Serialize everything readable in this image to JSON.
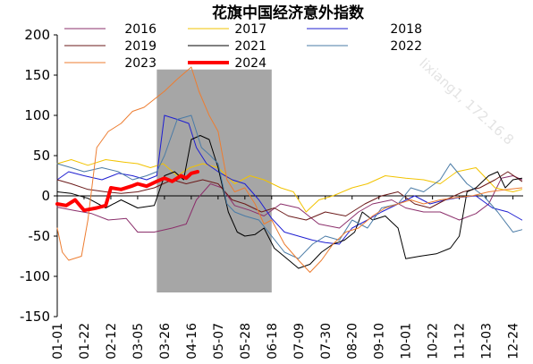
{
  "chart_data": {
    "type": "line",
    "title": "花旗中国经济意外指数",
    "xlabel": "",
    "ylabel": "",
    "x_ticks": [
      "01-01",
      "01-22",
      "02-12",
      "03-05",
      "03-26",
      "04-16",
      "05-07",
      "05-28",
      "06-18",
      "07-09",
      "07-30",
      "08-20",
      "09-10",
      "10-01",
      "10-22",
      "11-12",
      "12-03",
      "12-24"
    ],
    "x_range": [
      "01-01",
      "12-31"
    ],
    "ylim": [
      -150,
      200
    ],
    "y_ticks": [
      200,
      150,
      100,
      50,
      0,
      -50,
      -100,
      -150
    ],
    "grid": false,
    "zero_line": true,
    "legend_position": "top",
    "shaded_region": {
      "start": "03-20",
      "end": "06-18",
      "ylow": -120,
      "yhigh": 157,
      "color": "#a6a6a6"
    },
    "watermark": "lixiang1, 172.16.8",
    "series": [
      {
        "name": "2016",
        "color": "#8b2f6b",
        "width": 1,
        "points": [
          [
            "01-01",
            -14
          ],
          [
            "01-14",
            -18
          ],
          [
            "01-28",
            -22
          ],
          [
            "02-10",
            -30
          ],
          [
            "02-24",
            -28
          ],
          [
            "03-05",
            -45
          ],
          [
            "03-18",
            -45
          ],
          [
            "04-01",
            -40
          ],
          [
            "04-12",
            -35
          ],
          [
            "04-20",
            -5
          ],
          [
            "05-01",
            15
          ],
          [
            "05-10",
            10
          ],
          [
            "05-20",
            -12
          ],
          [
            "06-01",
            -18
          ],
          [
            "06-12",
            -25
          ],
          [
            "06-25",
            -10
          ],
          [
            "07-09",
            -15
          ],
          [
            "07-25",
            -35
          ],
          [
            "08-10",
            -40
          ],
          [
            "08-25",
            -20
          ],
          [
            "09-05",
            -10
          ],
          [
            "09-20",
            -5
          ],
          [
            "10-01",
            -15
          ],
          [
            "10-15",
            -20
          ],
          [
            "10-28",
            -20
          ],
          [
            "11-12",
            -30
          ],
          [
            "11-25",
            -22
          ],
          [
            "12-05",
            -10
          ],
          [
            "12-15",
            22
          ],
          [
            "12-24",
            25
          ],
          [
            "12-31",
            20
          ]
        ]
      },
      {
        "name": "2017",
        "color": "#f2c300",
        "width": 1,
        "points": [
          [
            "01-01",
            40
          ],
          [
            "01-12",
            45
          ],
          [
            "01-25",
            38
          ],
          [
            "02-08",
            45
          ],
          [
            "02-22",
            42
          ],
          [
            "03-05",
            40
          ],
          [
            "03-15",
            35
          ],
          [
            "03-25",
            40
          ],
          [
            "04-05",
            25
          ],
          [
            "04-15",
            35
          ],
          [
            "04-25",
            40
          ],
          [
            "05-07",
            35
          ],
          [
            "05-20",
            15
          ],
          [
            "06-01",
            25
          ],
          [
            "06-12",
            20
          ],
          [
            "06-25",
            10
          ],
          [
            "07-05",
            5
          ],
          [
            "07-15",
            -20
          ],
          [
            "07-25",
            -5
          ],
          [
            "08-05",
            0
          ],
          [
            "08-20",
            10
          ],
          [
            "09-01",
            15
          ],
          [
            "09-15",
            25
          ],
          [
            "10-01",
            22
          ],
          [
            "10-15",
            20
          ],
          [
            "10-28",
            15
          ],
          [
            "11-10",
            30
          ],
          [
            "11-25",
            35
          ],
          [
            "12-10",
            10
          ],
          [
            "12-24",
            5
          ],
          [
            "12-31",
            8
          ]
        ]
      },
      {
        "name": "2018",
        "color": "#1f1fd1",
        "width": 1,
        "points": [
          [
            "01-01",
            20
          ],
          [
            "01-10",
            30
          ],
          [
            "01-22",
            25
          ],
          [
            "02-05",
            20
          ],
          [
            "02-18",
            28
          ],
          [
            "03-01",
            25
          ],
          [
            "03-12",
            20
          ],
          [
            "03-20",
            25
          ],
          [
            "03-26",
            100
          ],
          [
            "04-05",
            95
          ],
          [
            "04-14",
            90
          ],
          [
            "04-20",
            60
          ],
          [
            "04-28",
            40
          ],
          [
            "05-07",
            30
          ],
          [
            "05-18",
            20
          ],
          [
            "05-28",
            15
          ],
          [
            "06-08",
            -5
          ],
          [
            "06-18",
            -28
          ],
          [
            "06-28",
            -45
          ],
          [
            "07-09",
            -50
          ],
          [
            "07-20",
            -55
          ],
          [
            "07-30",
            -58
          ],
          [
            "08-10",
            -60
          ],
          [
            "08-20",
            -40
          ],
          [
            "09-01",
            -30
          ],
          [
            "09-12",
            -20
          ],
          [
            "09-25",
            -10
          ],
          [
            "10-08",
            0
          ],
          [
            "10-20",
            -10
          ],
          [
            "11-01",
            -5
          ],
          [
            "11-12",
            -2
          ],
          [
            "11-25",
            0
          ],
          [
            "12-08",
            -15
          ],
          [
            "12-20",
            -20
          ],
          [
            "12-31",
            -30
          ]
        ]
      },
      {
        "name": "2019",
        "color": "#6b1a1a",
        "width": 1,
        "points": [
          [
            "01-01",
            20
          ],
          [
            "01-12",
            15
          ],
          [
            "01-25",
            8
          ],
          [
            "02-08",
            5
          ],
          [
            "02-20",
            3
          ],
          [
            "03-05",
            5
          ],
          [
            "03-18",
            10
          ],
          [
            "04-01",
            20
          ],
          [
            "04-12",
            15
          ],
          [
            "04-25",
            20
          ],
          [
            "05-07",
            15
          ],
          [
            "05-18",
            -5
          ],
          [
            "05-28",
            -10
          ],
          [
            "06-10",
            -20
          ],
          [
            "06-20",
            -15
          ],
          [
            "07-01",
            -25
          ],
          [
            "07-15",
            -30
          ],
          [
            "07-30",
            -20
          ],
          [
            "08-15",
            -25
          ],
          [
            "08-30",
            -10
          ],
          [
            "09-12",
            0
          ],
          [
            "09-25",
            5
          ],
          [
            "10-08",
            -10
          ],
          [
            "10-20",
            -15
          ],
          [
            "11-01",
            -5
          ],
          [
            "11-15",
            5
          ],
          [
            "11-28",
            10
          ],
          [
            "12-10",
            20
          ],
          [
            "12-20",
            30
          ],
          [
            "12-31",
            18
          ]
        ]
      },
      {
        "name": "2021",
        "color": "#000000",
        "width": 1,
        "points": [
          [
            "01-01",
            5
          ],
          [
            "01-12",
            3
          ],
          [
            "01-25",
            -3
          ],
          [
            "02-08",
            -15
          ],
          [
            "02-20",
            -5
          ],
          [
            "03-05",
            -15
          ],
          [
            "03-18",
            -12
          ],
          [
            "03-26",
            25
          ],
          [
            "04-03",
            30
          ],
          [
            "04-10",
            20
          ],
          [
            "04-16",
            70
          ],
          [
            "04-23",
            75
          ],
          [
            "04-30",
            70
          ],
          [
            "05-07",
            35
          ],
          [
            "05-15",
            -20
          ],
          [
            "05-22",
            -45
          ],
          [
            "05-28",
            -50
          ],
          [
            "06-05",
            -48
          ],
          [
            "06-12",
            -40
          ],
          [
            "06-20",
            -65
          ],
          [
            "06-30",
            -78
          ],
          [
            "07-09",
            -90
          ],
          [
            "07-18",
            -85
          ],
          [
            "07-27",
            -70
          ],
          [
            "08-05",
            -60
          ],
          [
            "08-14",
            -55
          ],
          [
            "08-22",
            -45
          ],
          [
            "08-28",
            -20
          ],
          [
            "09-05",
            -30
          ],
          [
            "09-15",
            -25
          ],
          [
            "09-25",
            -40
          ],
          [
            "10-01",
            -78
          ],
          [
            "10-12",
            -75
          ],
          [
            "10-25",
            -72
          ],
          [
            "11-05",
            -65
          ],
          [
            "11-12",
            -50
          ],
          [
            "11-18",
            5
          ],
          [
            "11-25",
            10
          ],
          [
            "12-05",
            25
          ],
          [
            "12-12",
            30
          ],
          [
            "12-18",
            10
          ],
          [
            "12-24",
            20
          ],
          [
            "12-31",
            22
          ]
        ]
      },
      {
        "name": "2022",
        "color": "#4a7ba6",
        "width": 1,
        "points": [
          [
            "01-01",
            40
          ],
          [
            "01-12",
            35
          ],
          [
            "01-22",
            30
          ],
          [
            "02-05",
            35
          ],
          [
            "02-18",
            30
          ],
          [
            "03-01",
            20
          ],
          [
            "03-12",
            25
          ],
          [
            "03-20",
            30
          ],
          [
            "03-26",
            50
          ],
          [
            "04-05",
            95
          ],
          [
            "04-16",
            100
          ],
          [
            "04-24",
            60
          ],
          [
            "05-01",
            50
          ],
          [
            "05-07",
            40
          ],
          [
            "05-14",
            -10
          ],
          [
            "05-20",
            -20
          ],
          [
            "05-28",
            -25
          ],
          [
            "06-08",
            -30
          ],
          [
            "06-18",
            -50
          ],
          [
            "06-28",
            -70
          ],
          [
            "07-09",
            -78
          ],
          [
            "07-20",
            -60
          ],
          [
            "07-30",
            -50
          ],
          [
            "08-10",
            -55
          ],
          [
            "08-20",
            -30
          ],
          [
            "09-01",
            -40
          ],
          [
            "09-12",
            -15
          ],
          [
            "09-25",
            -10
          ],
          [
            "10-05",
            10
          ],
          [
            "10-15",
            5
          ],
          [
            "10-28",
            20
          ],
          [
            "11-05",
            40
          ],
          [
            "11-18",
            15
          ],
          [
            "12-01",
            0
          ],
          [
            "12-12",
            -20
          ],
          [
            "12-24",
            -45
          ],
          [
            "12-31",
            -42
          ]
        ]
      },
      {
        "name": "2023",
        "color": "#ed7d31",
        "width": 1,
        "points": [
          [
            "01-01",
            -40
          ],
          [
            "01-05",
            -70
          ],
          [
            "01-10",
            -80
          ],
          [
            "01-20",
            -75
          ],
          [
            "01-25",
            -30
          ],
          [
            "02-01",
            60
          ],
          [
            "02-10",
            80
          ],
          [
            "02-20",
            90
          ],
          [
            "03-01",
            105
          ],
          [
            "03-10",
            110
          ],
          [
            "03-18",
            120
          ],
          [
            "03-26",
            130
          ],
          [
            "04-05",
            145
          ],
          [
            "04-16",
            160
          ],
          [
            "04-22",
            130
          ],
          [
            "04-30",
            100
          ],
          [
            "05-07",
            80
          ],
          [
            "05-14",
            20
          ],
          [
            "05-20",
            5
          ],
          [
            "05-28",
            10
          ],
          [
            "06-05",
            -10
          ],
          [
            "06-12",
            -35
          ],
          [
            "06-18",
            -30
          ],
          [
            "06-28",
            -60
          ],
          [
            "07-09",
            -80
          ],
          [
            "07-18",
            -95
          ],
          [
            "07-27",
            -80
          ],
          [
            "08-05",
            -60
          ],
          [
            "08-15",
            -45
          ],
          [
            "08-25",
            -40
          ],
          [
            "09-05",
            -25
          ],
          [
            "09-15",
            -15
          ],
          [
            "09-25",
            -10
          ],
          [
            "10-05",
            -5
          ],
          [
            "10-15",
            -10
          ],
          [
            "10-28",
            -5
          ],
          [
            "11-10",
            -2
          ],
          [
            "11-22",
            0
          ],
          [
            "12-05",
            5
          ],
          [
            "12-20",
            8
          ],
          [
            "12-31",
            10
          ]
        ]
      },
      {
        "name": "2024",
        "color": "#ff0000",
        "width": 4,
        "points": [
          [
            "01-01",
            -10
          ],
          [
            "01-08",
            -12
          ],
          [
            "01-15",
            -5
          ],
          [
            "01-22",
            -18
          ],
          [
            "02-01",
            -15
          ],
          [
            "02-08",
            -12
          ],
          [
            "02-12",
            10
          ],
          [
            "02-20",
            8
          ],
          [
            "02-28",
            12
          ],
          [
            "03-05",
            15
          ],
          [
            "03-12",
            12
          ],
          [
            "03-20",
            18
          ],
          [
            "03-26",
            22
          ],
          [
            "04-01",
            18
          ],
          [
            "04-08",
            25
          ],
          [
            "04-12",
            22
          ],
          [
            "04-16",
            28
          ],
          [
            "04-21",
            30
          ]
        ]
      }
    ]
  }
}
